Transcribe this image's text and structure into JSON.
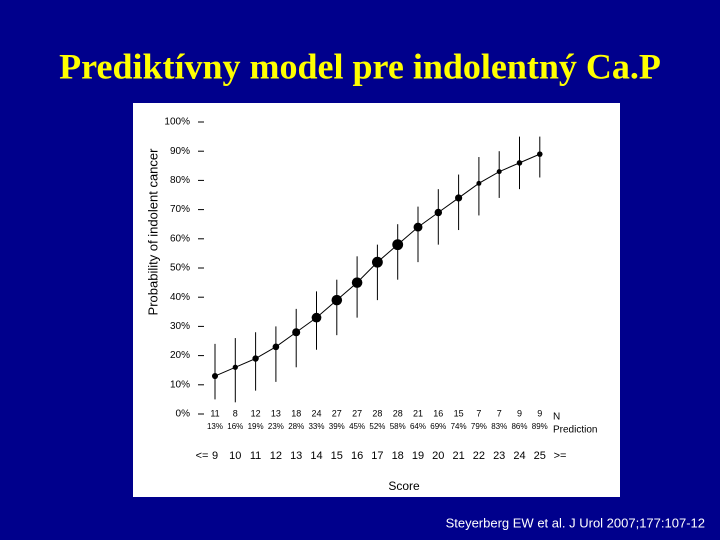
{
  "chart_data": {
    "type": "line",
    "title": "Prediktívny model pre indolentný Ca.P",
    "ylabel": "Probability of indolent cancer",
    "xlabel": "Score",
    "x_prefix": "<=",
    "x_suffix": ">=",
    "n_label": "N",
    "values_label": "Prediction",
    "color": "#000000",
    "categories": [
      "9",
      "10",
      "11",
      "12",
      "13",
      "14",
      "15",
      "16",
      "17",
      "18",
      "19",
      "20",
      "21",
      "22",
      "23",
      "24",
      "25"
    ],
    "n": [
      11,
      8,
      12,
      13,
      18,
      24,
      27,
      27,
      28,
      28,
      21,
      16,
      15,
      7,
      7,
      9,
      9
    ],
    "values": [
      13,
      16,
      19,
      23,
      28,
      33,
      39,
      45,
      52,
      58,
      64,
      69,
      74,
      79,
      83,
      86,
      89
    ],
    "value_labels": [
      "13%",
      "16%",
      "19%",
      "23%",
      "28%",
      "33%",
      "39%",
      "45%",
      "52%",
      "58%",
      "64%",
      "69%",
      "74%",
      "79%",
      "83%",
      "86%",
      "89%"
    ],
    "lower": [
      5,
      4,
      8,
      11,
      16,
      22,
      27,
      33,
      39,
      46,
      52,
      58,
      63,
      68,
      74,
      77,
      81
    ],
    "upper": [
      24,
      26,
      28,
      30,
      36,
      42,
      46,
      54,
      58,
      65,
      71,
      77,
      82,
      88,
      90,
      95,
      95
    ],
    "ylim": [
      0,
      100
    ],
    "yticks": [
      {
        "value": 0,
        "label": "0%"
      },
      {
        "value": 10,
        "label": "10%"
      },
      {
        "value": 20,
        "label": "20%"
      },
      {
        "value": 30,
        "label": "30%"
      },
      {
        "value": 40,
        "label": "40%"
      },
      {
        "value": 50,
        "label": "50%"
      },
      {
        "value": 60,
        "label": "60%"
      },
      {
        "value": 70,
        "label": "70%"
      },
      {
        "value": 80,
        "label": "80%"
      },
      {
        "value": 90,
        "label": "90%"
      },
      {
        "value": 100,
        "label": "100%"
      }
    ]
  },
  "source": "Steyerberg EW et al. J Urol 2007;177:107-12"
}
